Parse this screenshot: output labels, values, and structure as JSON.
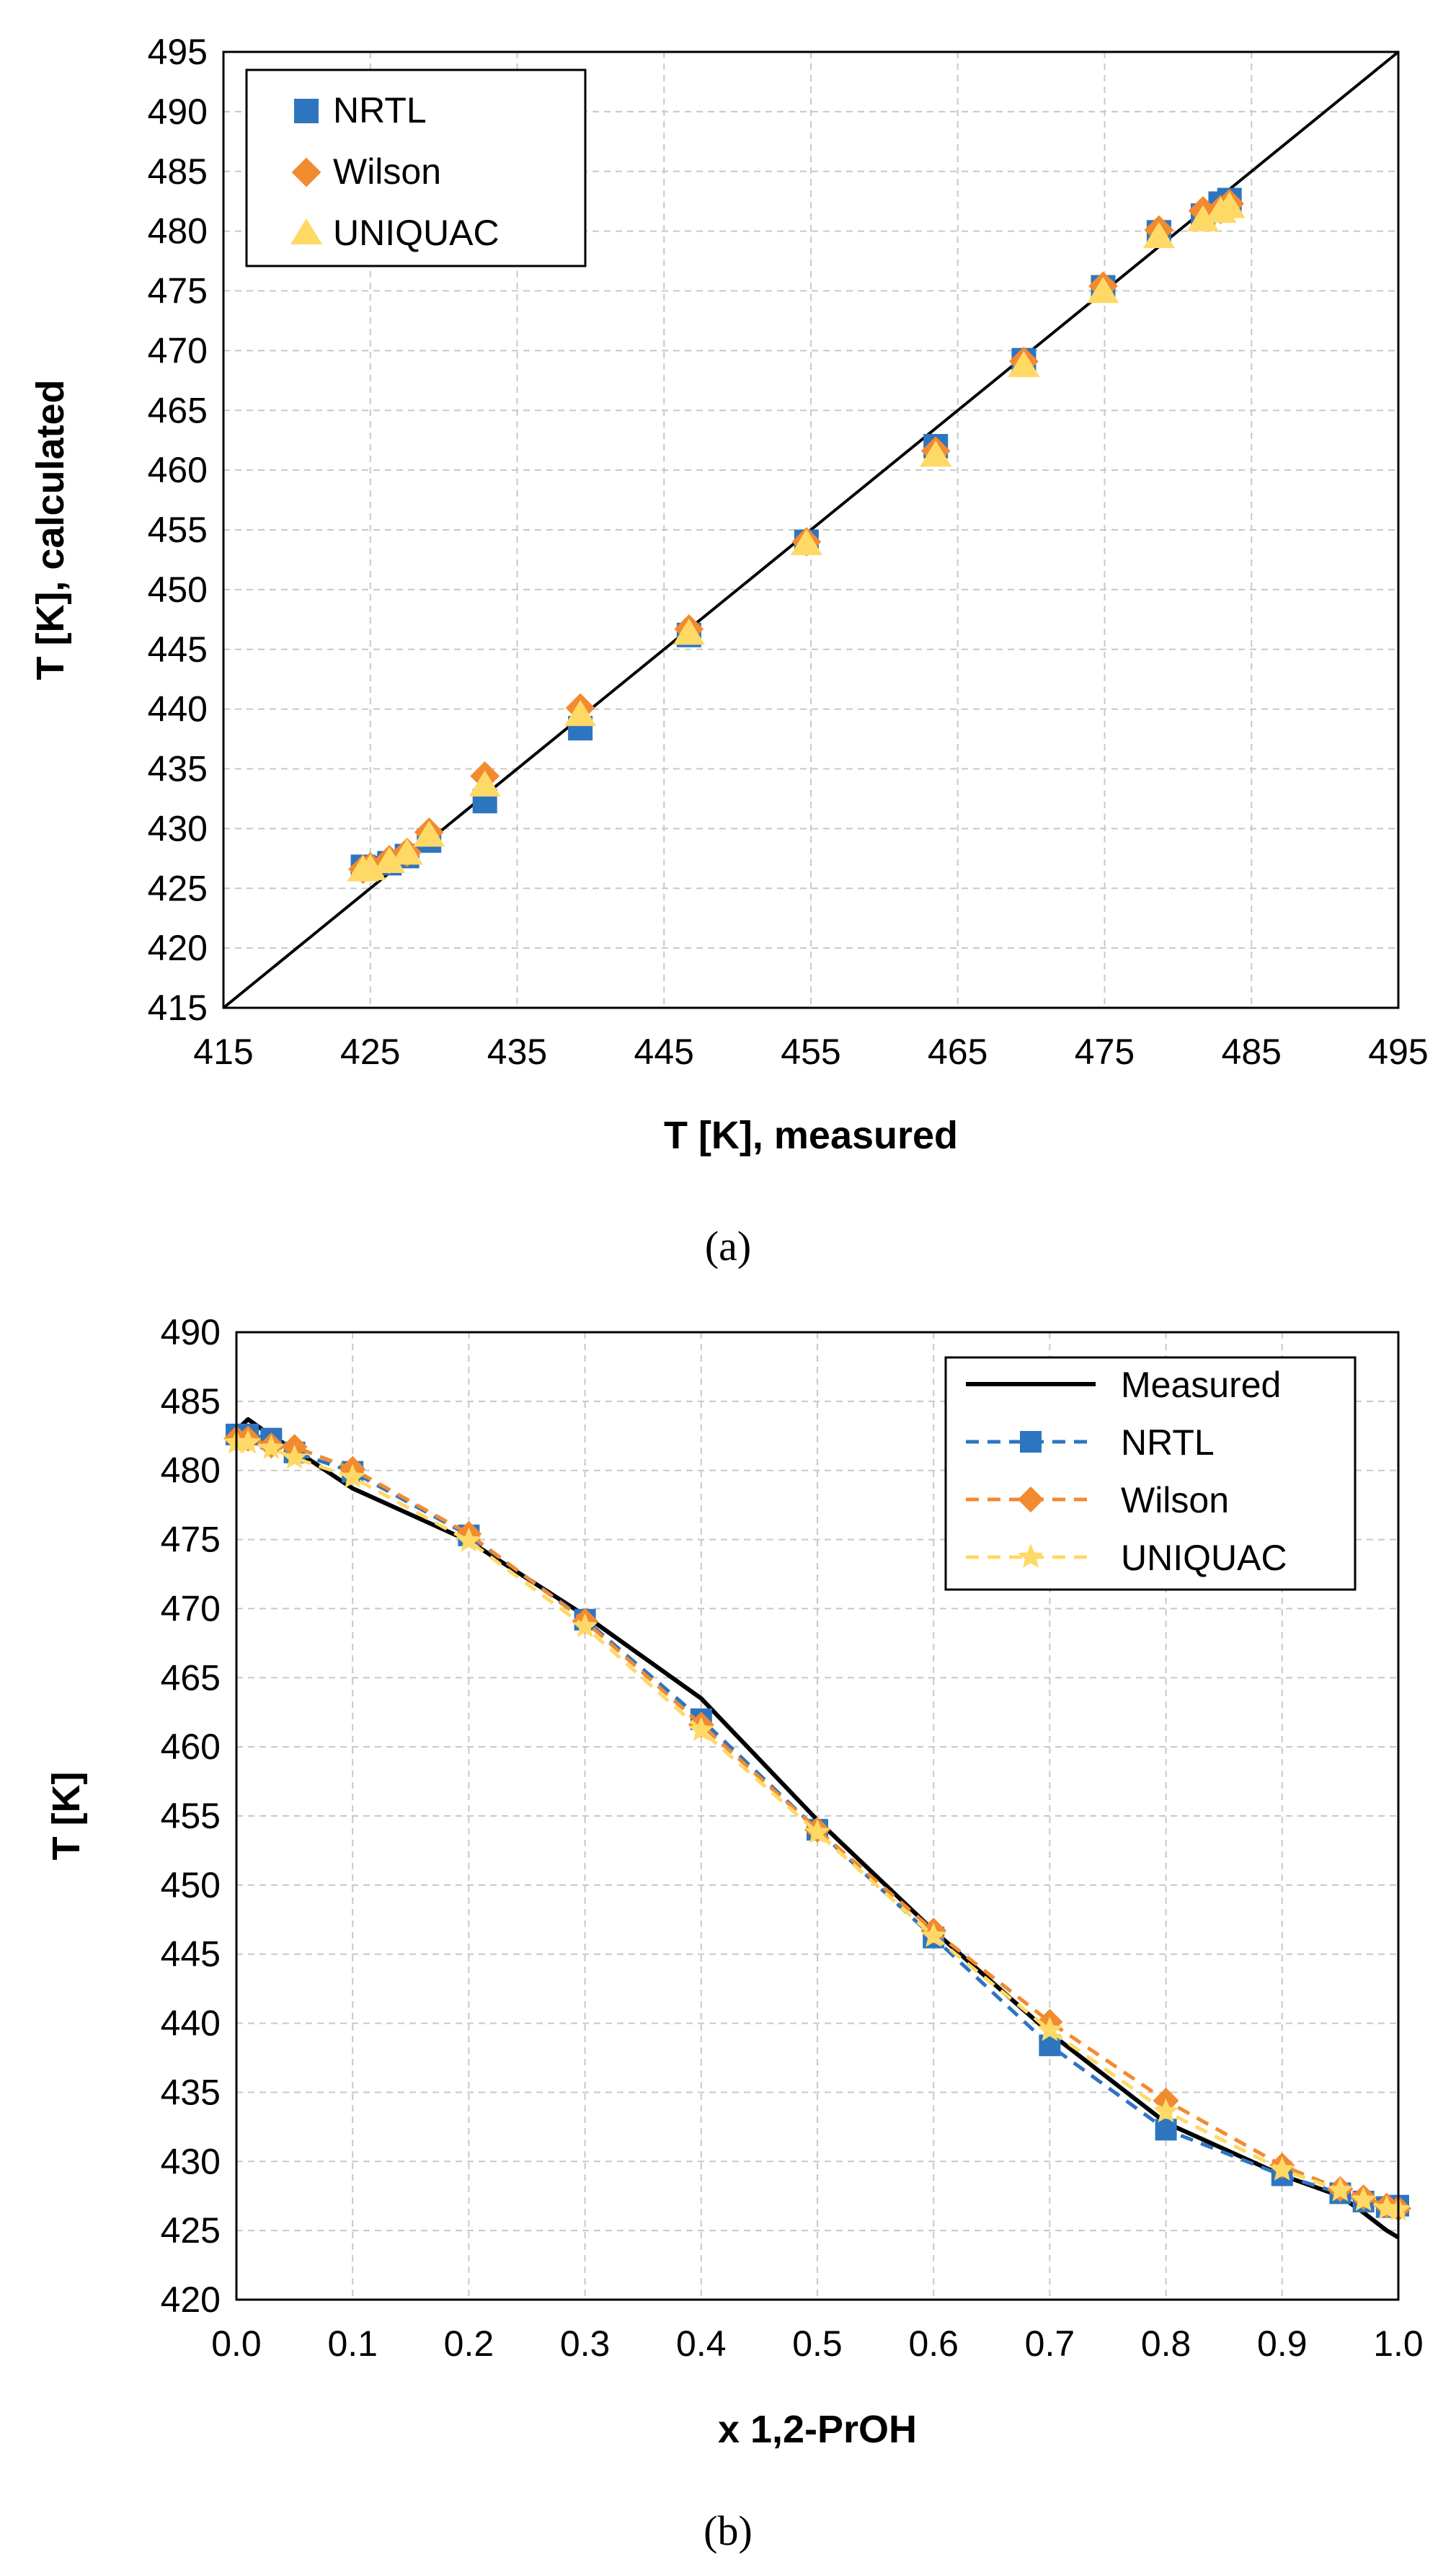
{
  "colors": {
    "nrtl": "#2e75c0",
    "wilson": "#f28a30",
    "uniquac": "#ffd966",
    "measured": "#000000"
  },
  "chart_data": [
    {
      "type": "scatter",
      "panel_label": "(a)",
      "xlabel": "T [K], measured",
      "ylabel": "T [K], calculated",
      "xlim": [
        415,
        495
      ],
      "ylim": [
        415,
        495
      ],
      "xticks": [
        "415",
        "425",
        "435",
        "445",
        "455",
        "465",
        "475",
        "485",
        "495"
      ],
      "yticks": [
        "415",
        "420",
        "425",
        "430",
        "435",
        "440",
        "445",
        "450",
        "455",
        "460",
        "465",
        "470",
        "475",
        "480",
        "485",
        "490",
        "495"
      ],
      "grid": true,
      "legend_position": "top-left",
      "diagonal": [
        [
          415,
          415
        ],
        [
          495,
          495
        ]
      ],
      "x": [
        424.5,
        425.0,
        426.3,
        427.5,
        429.0,
        432.8,
        439.3,
        446.7,
        454.7,
        463.5,
        469.5,
        474.9,
        478.7,
        481.7,
        482.9,
        483.5
      ],
      "series": [
        {
          "name": "NRTL",
          "marker": "square",
          "values": [
            426.8,
            426.7,
            427.1,
            427.7,
            429.0,
            432.3,
            438.4,
            446.2,
            454.0,
            462.0,
            469.2,
            475.3,
            479.9,
            481.3,
            482.3,
            482.6
          ]
        },
        {
          "name": "Wilson",
          "marker": "diamond",
          "values": [
            426.6,
            426.8,
            427.4,
            428.0,
            429.7,
            434.4,
            440.1,
            446.7,
            454.0,
            461.6,
            469.1,
            475.4,
            480.1,
            481.7,
            481.8,
            482.3
          ]
        },
        {
          "name": "UNIQUAC",
          "marker": "triangle",
          "values": [
            426.5,
            426.6,
            427.2,
            427.9,
            429.4,
            433.6,
            439.5,
            446.3,
            453.8,
            461.2,
            468.7,
            474.9,
            479.5,
            480.9,
            481.6,
            482.0
          ]
        }
      ]
    },
    {
      "type": "line",
      "panel_label": "(b)",
      "xlabel": "x 1,2-PrOH",
      "ylabel": "T [K]",
      "xlim": [
        0,
        1
      ],
      "ylim": [
        420,
        490
      ],
      "xticks": [
        "0.0",
        "0.1",
        "0.2",
        "0.3",
        "0.4",
        "0.5",
        "0.6",
        "0.7",
        "0.8",
        "0.9",
        "1.0"
      ],
      "yticks": [
        "420",
        "425",
        "430",
        "435",
        "440",
        "445",
        "450",
        "455",
        "460",
        "465",
        "470",
        "475",
        "480",
        "485",
        "490"
      ],
      "grid": true,
      "legend_position": "top-right",
      "x": [
        0.0,
        0.01,
        0.03,
        0.05,
        0.1,
        0.2,
        0.3,
        0.4,
        0.5,
        0.6,
        0.7,
        0.8,
        0.9,
        0.95,
        0.97,
        0.99,
        1.0
      ],
      "series": [
        {
          "name": "Measured",
          "style": "solid",
          "marker": "none",
          "values": [
            482.9,
            483.7,
            482.5,
            481.5,
            478.7,
            474.9,
            469.5,
            463.5,
            454.7,
            446.7,
            439.3,
            432.8,
            429.0,
            427.5,
            426.3,
            425.0,
            424.5
          ]
        },
        {
          "name": "NRTL",
          "style": "dashed",
          "marker": "square",
          "values": [
            482.6,
            482.6,
            482.3,
            481.3,
            479.9,
            475.3,
            469.2,
            462.0,
            454.0,
            446.2,
            438.4,
            432.3,
            429.0,
            427.7,
            427.1,
            426.7,
            426.8
          ]
        },
        {
          "name": "Wilson",
          "style": "dashed",
          "marker": "diamond",
          "values": [
            482.3,
            482.3,
            481.8,
            481.7,
            480.1,
            475.4,
            469.1,
            461.6,
            454.0,
            446.7,
            440.1,
            434.4,
            429.7,
            428.0,
            427.4,
            426.8,
            426.6
          ]
        },
        {
          "name": "UNIQUAC",
          "style": "dashed",
          "marker": "star",
          "values": [
            482.0,
            482.0,
            481.6,
            480.9,
            479.5,
            474.9,
            468.7,
            461.2,
            453.8,
            446.3,
            439.5,
            433.6,
            429.4,
            427.9,
            427.2,
            426.6,
            426.5
          ]
        }
      ]
    }
  ]
}
